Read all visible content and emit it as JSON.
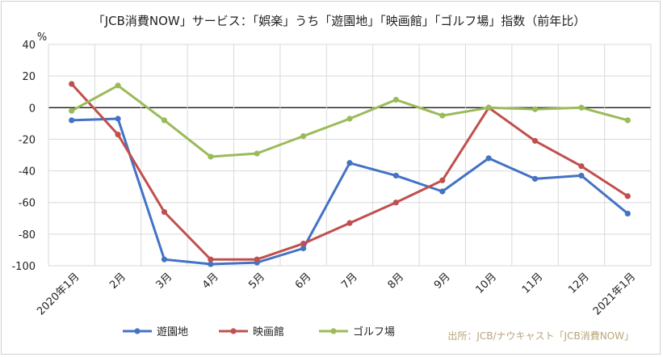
{
  "chart_data": {
    "type": "line",
    "title": "「JCB消費NOW」サービス：「娯楽」うち「遊園地」「映画館」「ゴルフ場」指数（前年比）",
    "ylabel": "%",
    "ylim": [
      -100,
      40
    ],
    "yticks": [
      40,
      20,
      0,
      -20,
      -40,
      -60,
      -80,
      -100
    ],
    "grid": true,
    "legend_position": "bottom-left",
    "categories": [
      "2020年1月",
      "2月",
      "3月",
      "4月",
      "5月",
      "6月",
      "7月",
      "8月",
      "9月",
      "10月",
      "11月",
      "12月",
      "2021年1月"
    ],
    "series": [
      {
        "name": "遊園地",
        "color": "#4472c4",
        "values": [
          -8,
          -7,
          -96,
          -99,
          -98,
          -89,
          -35,
          -43,
          -53,
          -32,
          -45,
          -43,
          -67
        ]
      },
      {
        "name": "映画館",
        "color": "#c0504d",
        "values": [
          15,
          -17,
          -66,
          -96,
          -96,
          -86,
          -73,
          -60,
          -46,
          0,
          -21,
          -37,
          -56
        ]
      },
      {
        "name": "ゴルフ場",
        "color": "#9bbb59",
        "values": [
          -2,
          14,
          -8,
          -31,
          -29,
          -18,
          -7,
          5,
          -5,
          0,
          -1,
          0,
          -8
        ]
      }
    ],
    "source": "出所：JCB/ナウキャスト「JCB消費NOW」"
  }
}
